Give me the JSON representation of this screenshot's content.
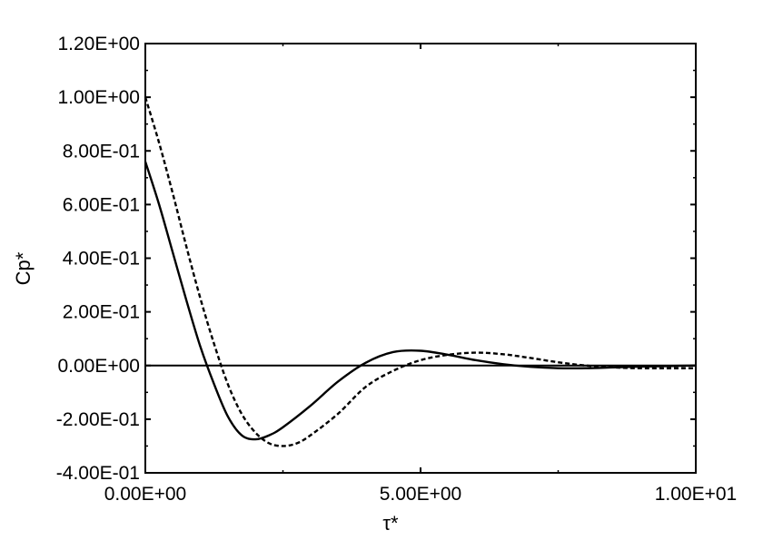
{
  "chart_data": {
    "type": "line",
    "xlabel": "τ*",
    "ylabel": "Cp*",
    "xlim": [
      0,
      10
    ],
    "ylim": [
      -0.4,
      1.2
    ],
    "x_ticks": [
      {
        "value": 0,
        "label": "0.00E+00"
      },
      {
        "value": 5,
        "label": "5.00E+00"
      },
      {
        "value": 10,
        "label": "1.00E+01"
      }
    ],
    "y_ticks": [
      {
        "value": 1.2,
        "label": "1.20E+00"
      },
      {
        "value": 1.0,
        "label": "1.00E+00"
      },
      {
        "value": 0.8,
        "label": "8.00E-01"
      },
      {
        "value": 0.6,
        "label": "6.00E-01"
      },
      {
        "value": 0.4,
        "label": "4.00E-01"
      },
      {
        "value": 0.2,
        "label": "2.00E-01"
      },
      {
        "value": 0.0,
        "label": "0.00E+00"
      },
      {
        "value": -0.2,
        "label": "-2.00E-01"
      },
      {
        "value": -0.4,
        "label": "-4.00E-01"
      }
    ],
    "zero_line": true,
    "grid": false,
    "series": [
      {
        "style": "solid",
        "color": "#000000",
        "points": [
          [
            0,
            0.76
          ],
          [
            0.25,
            0.6
          ],
          [
            0.5,
            0.42
          ],
          [
            0.75,
            0.24
          ],
          [
            1.0,
            0.07
          ],
          [
            1.25,
            -0.07
          ],
          [
            1.5,
            -0.19
          ],
          [
            1.75,
            -0.26
          ],
          [
            2.0,
            -0.275
          ],
          [
            2.25,
            -0.26
          ],
          [
            2.5,
            -0.23
          ],
          [
            3.0,
            -0.15
          ],
          [
            3.5,
            -0.06
          ],
          [
            4.0,
            0.01
          ],
          [
            4.5,
            0.05
          ],
          [
            5.0,
            0.055
          ],
          [
            5.5,
            0.04
          ],
          [
            6.0,
            0.02
          ],
          [
            6.5,
            0.005
          ],
          [
            7.0,
            -0.005
          ],
          [
            7.5,
            -0.01
          ],
          [
            8.0,
            -0.01
          ],
          [
            8.5,
            -0.007
          ],
          [
            9.0,
            -0.004
          ],
          [
            10.0,
            0.0
          ]
        ]
      },
      {
        "style": "dashed",
        "color": "#000000",
        "points": [
          [
            0,
            1.0
          ],
          [
            0.25,
            0.83
          ],
          [
            0.5,
            0.64
          ],
          [
            0.75,
            0.44
          ],
          [
            1.0,
            0.25
          ],
          [
            1.25,
            0.08
          ],
          [
            1.5,
            -0.07
          ],
          [
            1.75,
            -0.18
          ],
          [
            2.0,
            -0.25
          ],
          [
            2.25,
            -0.29
          ],
          [
            2.5,
            -0.3
          ],
          [
            2.75,
            -0.29
          ],
          [
            3.0,
            -0.26
          ],
          [
            3.5,
            -0.18
          ],
          [
            4.0,
            -0.08
          ],
          [
            4.5,
            -0.02
          ],
          [
            5.0,
            0.02
          ],
          [
            5.5,
            0.04
          ],
          [
            6.0,
            0.048
          ],
          [
            6.5,
            0.042
          ],
          [
            7.0,
            0.028
          ],
          [
            7.5,
            0.012
          ],
          [
            8.0,
            0.0
          ],
          [
            8.5,
            -0.007
          ],
          [
            9.0,
            -0.01
          ],
          [
            10.0,
            -0.01
          ]
        ]
      }
    ]
  }
}
